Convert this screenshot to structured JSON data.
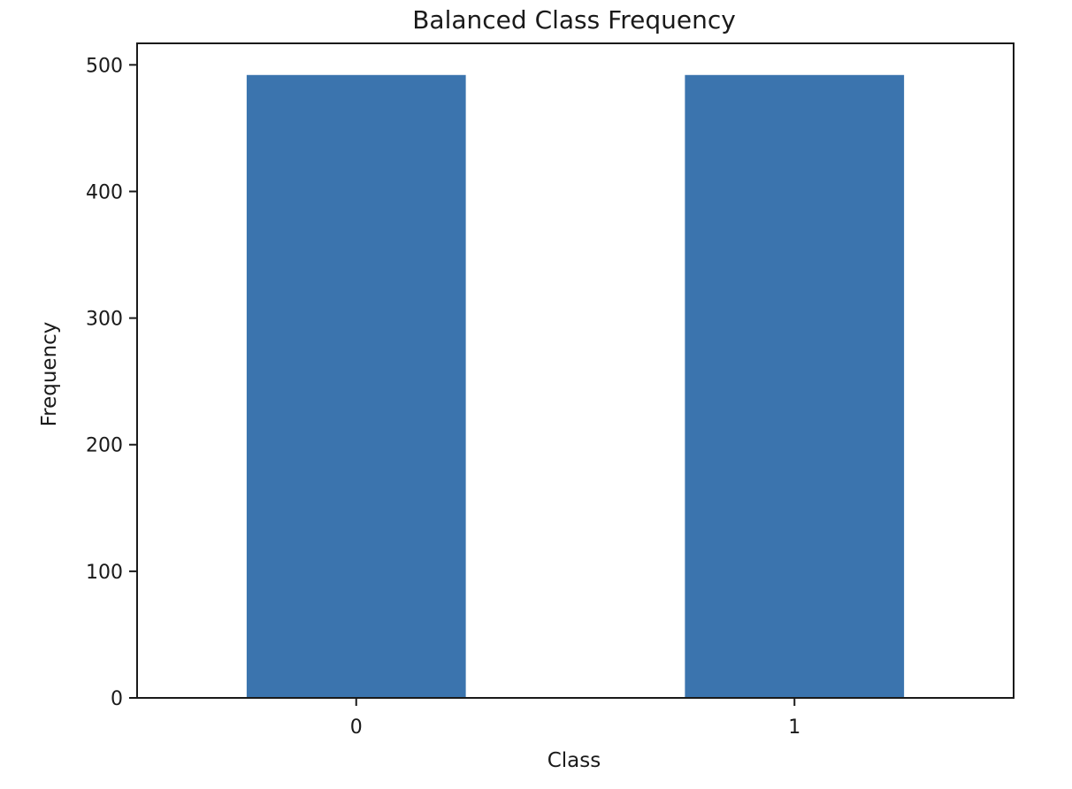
{
  "chart_data": {
    "type": "bar",
    "title": "Balanced Class Frequency",
    "xlabel": "Class",
    "ylabel": "Frequency",
    "categories": [
      "0",
      "1"
    ],
    "values": [
      492,
      492
    ],
    "ylim": [
      0,
      517
    ],
    "yticks": [
      0,
      100,
      200,
      300,
      400,
      500
    ],
    "grid": false,
    "legend": "none",
    "colors": {
      "bar": "#3b74ae",
      "axes": "#1a1a1a",
      "text": "#1a1a1a",
      "background": "#ffffff"
    }
  }
}
